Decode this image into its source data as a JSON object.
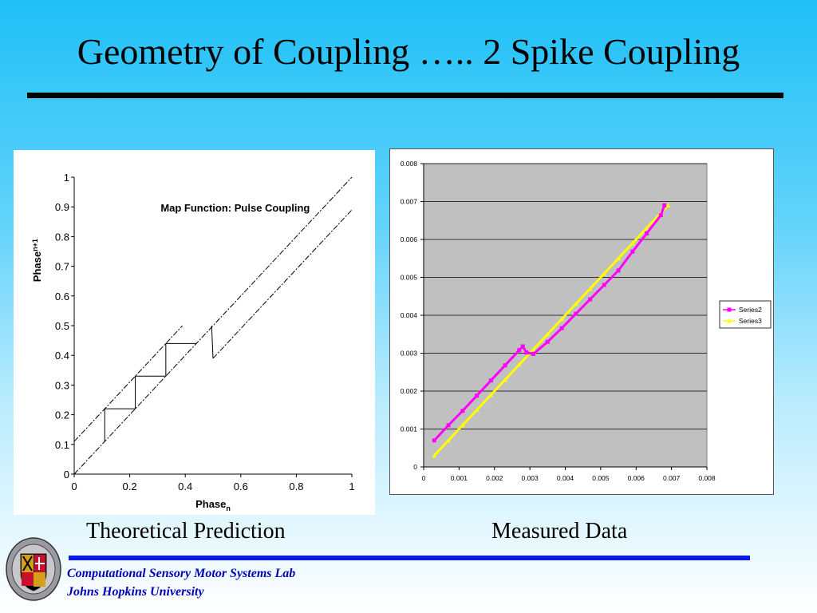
{
  "slide": {
    "title": "Geometry of Coupling ….. 2 Spike Coupling",
    "caption_left": "Theoretical Prediction",
    "caption_right": "Measured Data",
    "footer_lab": "Computational Sensory Motor Systems Lab",
    "footer_university": "Johns Hopkins University",
    "logo_icon": "university-seal-icon",
    "colors": {
      "footer_text": "#0000b8",
      "footer_rule": "#0a1ae6",
      "series2": "#ff00ff",
      "series3": "#ffff00",
      "plot_bg": "#c0c0c0"
    }
  },
  "chart_data": [
    {
      "type": "line",
      "title": "Map Function: Pulse Coupling",
      "xlabel": "Phase",
      "xlabel_sub": "n",
      "ylabel": "Phase",
      "ylabel_sub": "n+1",
      "xlim": [
        0,
        1
      ],
      "ylim": [
        0,
        1
      ],
      "x_ticks": [
        "0",
        "0.2",
        "0.4",
        "0.6",
        "0.8",
        "1"
      ],
      "y_ticks": [
        "0",
        "0.1",
        "0.2",
        "0.3",
        "0.4",
        "0.5",
        "0.6",
        "0.7",
        "0.8",
        "0.9",
        "1"
      ],
      "identity": {
        "x": [
          0,
          1
        ],
        "y": [
          0,
          1
        ]
      },
      "map_segment_1": {
        "x": [
          0,
          0.39
        ],
        "y": [
          0.11,
          0.5
        ]
      },
      "map_segment_2": {
        "x": [
          0.5,
          1
        ],
        "y": [
          0.39,
          0.89
        ]
      },
      "map_jump": {
        "x": [
          0.495,
          0.5
        ],
        "y": [
          0.5,
          0.39
        ]
      },
      "cobweb": {
        "x": [
          0.11,
          0.11,
          0.22,
          0.22,
          0.33,
          0.33,
          0.44,
          0.44
        ],
        "y": [
          0.11,
          0.22,
          0.22,
          0.33,
          0.33,
          0.44,
          0.44,
          0.44
        ]
      },
      "grid": false
    },
    {
      "type": "scatter",
      "xlim": [
        0,
        0.008
      ],
      "ylim": [
        0,
        0.008
      ],
      "x_ticks": [
        "0",
        "0.001",
        "0.002",
        "0.003",
        "0.004",
        "0.005",
        "0.006",
        "0.007",
        "0.008"
      ],
      "y_ticks": [
        "0",
        "0.001",
        "0.002",
        "0.003",
        "0.004",
        "0.005",
        "0.006",
        "0.007",
        "0.008"
      ],
      "grid": true,
      "legend_position": "right",
      "series": [
        {
          "name": "Series2",
          "color": "#ff00ff",
          "x": [
            0.0003,
            0.0007,
            0.0011,
            0.0015,
            0.0019,
            0.0023,
            0.0027,
            0.0028,
            0.0029,
            0.0031,
            0.0035,
            0.0039,
            0.0043,
            0.0047,
            0.0051,
            0.0055,
            0.0059,
            0.0063,
            0.0067,
            0.0068
          ],
          "y": [
            0.0007,
            0.0011,
            0.00148,
            0.00188,
            0.00228,
            0.00268,
            0.00308,
            0.00318,
            0.00302,
            0.00298,
            0.0033,
            0.00366,
            0.00404,
            0.00442,
            0.0048,
            0.00518,
            0.00568,
            0.00616,
            0.00664,
            0.0069
          ]
        },
        {
          "name": "Series3",
          "color": "#ffff00",
          "x": [
            0.0003,
            0.0007,
            0.0011,
            0.0015,
            0.0019,
            0.0023,
            0.0027,
            0.0031,
            0.0035,
            0.0039,
            0.0043,
            0.0047,
            0.0051,
            0.0055,
            0.0059,
            0.0063,
            0.0067,
            0.0069
          ],
          "y": [
            0.0003,
            0.0007,
            0.0011,
            0.0015,
            0.0019,
            0.0023,
            0.0027,
            0.0031,
            0.0035,
            0.0039,
            0.0043,
            0.0047,
            0.0051,
            0.0055,
            0.0059,
            0.0063,
            0.0067,
            0.0069
          ]
        }
      ]
    }
  ]
}
